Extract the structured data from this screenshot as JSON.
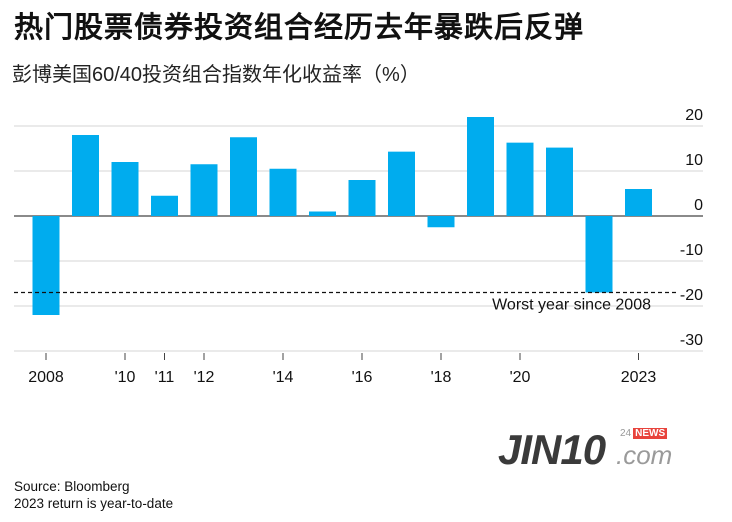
{
  "header": {
    "title": "热门股票债券投资组合经历去年暴跌后反弹",
    "subtitle": "彭博美国60/40投资组合指数年化收益率（%）"
  },
  "chart_data": {
    "type": "bar",
    "categories": [
      "2008",
      "2009",
      "2010",
      "2011",
      "2012",
      "2013",
      "2014",
      "2015",
      "2016",
      "2017",
      "2018",
      "2019",
      "2020",
      "2021",
      "2022",
      "2023"
    ],
    "x_tick_labels": [
      "2008",
      "",
      "'10",
      "'11",
      "'12",
      "",
      "'14",
      "",
      "'16",
      "",
      "'18",
      "",
      "'20",
      "",
      "",
      "2023"
    ],
    "values": [
      -22,
      18,
      12,
      4.5,
      11.5,
      17.5,
      10.5,
      1,
      8,
      14.3,
      -2.5,
      22,
      16.3,
      15.2,
      -17,
      6
    ],
    "ylim": [
      -30,
      22
    ],
    "yticks": [
      20,
      10,
      0,
      -10,
      -20,
      -30
    ],
    "bar_color": "#00acee",
    "reference_line": {
      "value": -17,
      "label": "Worst year since 2008"
    },
    "grid": true
  },
  "footer": {
    "source": "Source: Bloomberg",
    "note": "2023 return is year-to-date"
  },
  "watermark": {
    "brand": "JIN10",
    "domain": ".com",
    "badge_number": "24",
    "badge_news": "NEWS"
  }
}
